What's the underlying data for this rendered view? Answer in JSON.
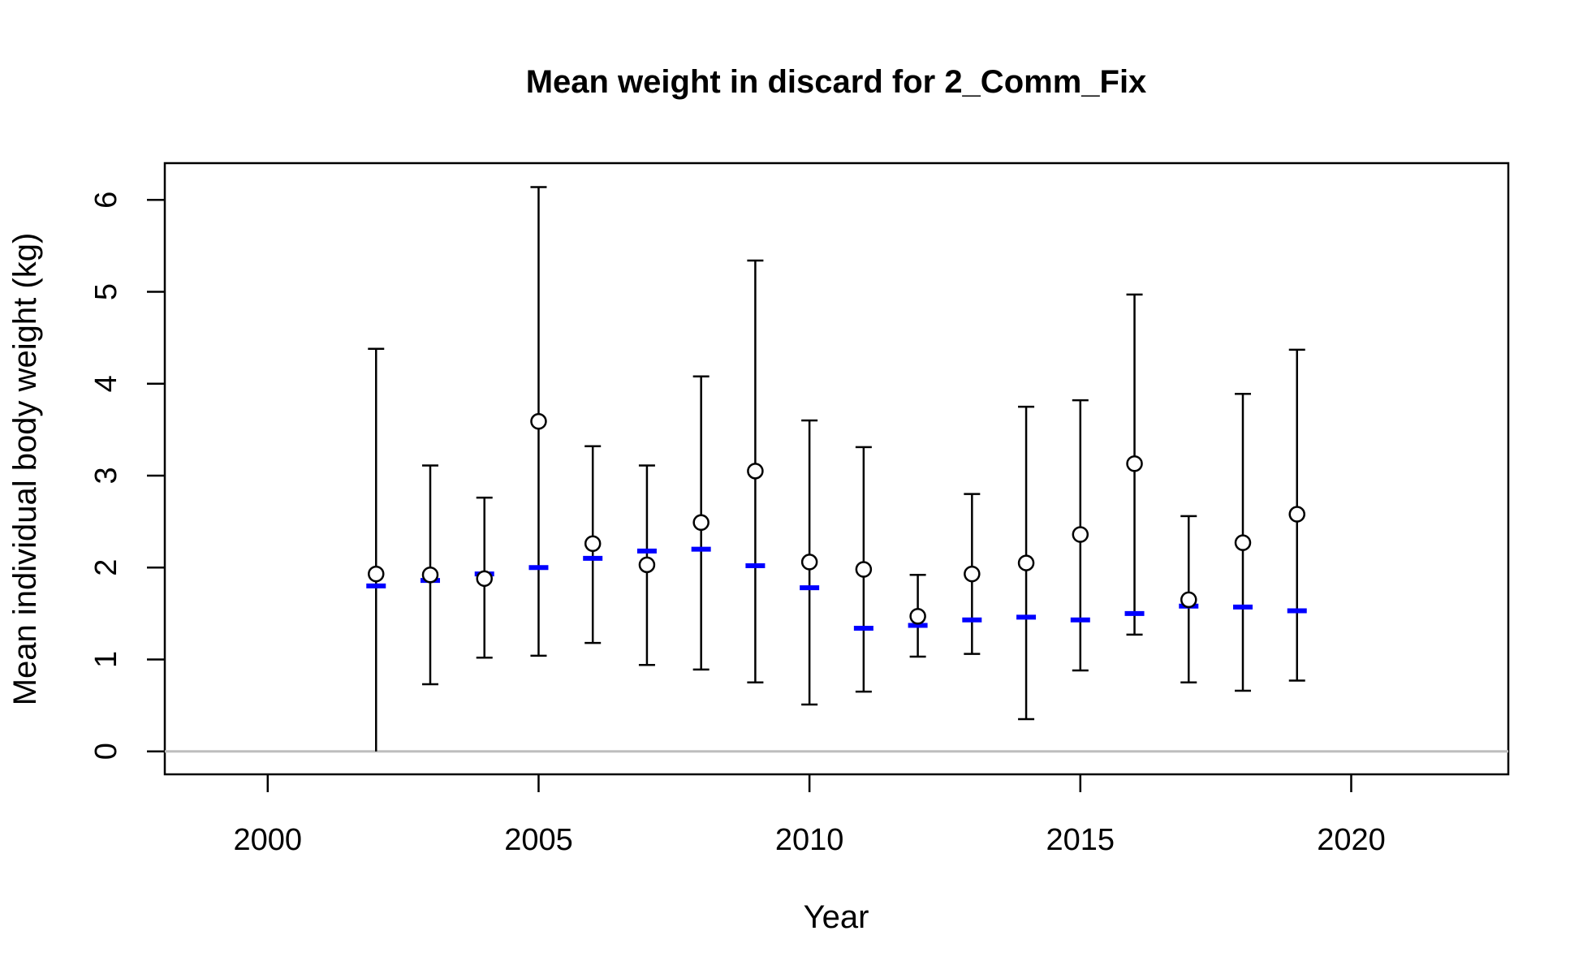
{
  "chart_data": {
    "type": "scatter",
    "title": "Mean weight in discard for 2_Comm_Fix",
    "xlabel": "Year",
    "ylabel": "Mean individual body weight (kg)",
    "xlim": [
      1998.1,
      2022.9
    ],
    "ylim": [
      -0.25,
      6.4
    ],
    "x_ticks": [
      2000,
      2005,
      2010,
      2015,
      2020
    ],
    "y_ticks": [
      0,
      1,
      2,
      3,
      4,
      5,
      6
    ],
    "grid": false,
    "legend": "none",
    "reference_line": {
      "y": 0,
      "color": "#bebebe"
    },
    "series": [
      {
        "marker": "open-circle",
        "color": "#000000",
        "x": [
          2002,
          2003,
          2004,
          2005,
          2006,
          2007,
          2008,
          2009,
          2010,
          2011,
          2012,
          2013,
          2014,
          2015,
          2016,
          2017,
          2018,
          2019
        ],
        "y": [
          1.93,
          1.92,
          1.88,
          3.59,
          2.26,
          2.03,
          2.49,
          3.05,
          2.06,
          1.98,
          1.47,
          1.93,
          2.05,
          2.36,
          3.13,
          1.65,
          2.27,
          2.58
        ],
        "lower": [
          0.0,
          0.73,
          1.02,
          1.04,
          1.18,
          0.94,
          0.89,
          0.75,
          0.51,
          0.65,
          1.03,
          1.06,
          0.35,
          0.88,
          1.27,
          0.75,
          0.66,
          0.77
        ],
        "upper": [
          4.38,
          3.11,
          2.76,
          6.14,
          3.32,
          3.11,
          4.08,
          5.34,
          3.6,
          3.31,
          1.92,
          2.8,
          3.75,
          3.82,
          4.97,
          2.56,
          3.89,
          4.37
        ]
      },
      {
        "marker": "horizontal-dash",
        "color": "#0000ff",
        "x": [
          2002,
          2003,
          2004,
          2005,
          2006,
          2007,
          2008,
          2009,
          2010,
          2011,
          2012,
          2013,
          2014,
          2015,
          2016,
          2017,
          2018,
          2019
        ],
        "y": [
          1.8,
          1.86,
          1.93,
          2.0,
          2.1,
          2.18,
          2.2,
          2.02,
          1.78,
          1.34,
          1.37,
          1.43,
          1.46,
          1.43,
          1.5,
          1.58,
          1.57,
          1.53
        ]
      }
    ]
  }
}
